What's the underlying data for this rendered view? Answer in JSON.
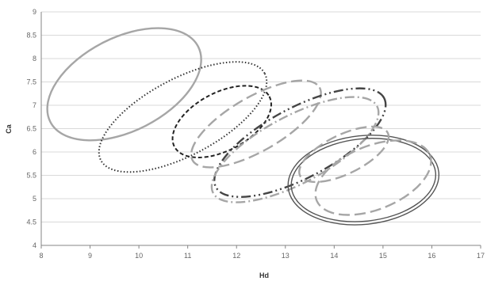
{
  "chart_data": {
    "type": "scatter",
    "title": "",
    "xlabel": "Hd",
    "ylabel": "Ca",
    "xlim": [
      8,
      17
    ],
    "ylim": [
      4,
      9
    ],
    "x_ticks": [
      "8",
      "9",
      "10",
      "11",
      "12",
      "13",
      "14",
      "15",
      "16",
      "17"
    ],
    "y_ticks": [
      "4",
      "4.5",
      "5",
      "5.5",
      "6",
      "6.5",
      "7",
      "7.5",
      "8",
      "8.5",
      "9"
    ],
    "grid": "horizontal",
    "legend": "none",
    "series": [
      {
        "shape": "ellipse",
        "center": [
          9.7,
          7.45
        ],
        "radius_x": 1.7,
        "radius_y": 1.0,
        "rotation_deg": 27,
        "style": "solid",
        "color": "#a6a6a6"
      },
      {
        "shape": "ellipse",
        "center": [
          10.9,
          6.75
        ],
        "radius_x": 1.9,
        "radius_y": 0.82,
        "rotation_deg": 28,
        "style": "dotted",
        "color": "#333333"
      },
      {
        "shape": "ellipse",
        "center": [
          11.7,
          6.65
        ],
        "radius_x": 1.1,
        "radius_y": 0.62,
        "rotation_deg": 28,
        "style": "dashed",
        "color": "#222222"
      },
      {
        "shape": "ellipse",
        "center": [
          12.4,
          6.6
        ],
        "radius_x": 1.5,
        "radius_y": 0.58,
        "rotation_deg": 30,
        "style": "long-dash",
        "color": "#a6a6a6"
      },
      {
        "shape": "ellipse",
        "center": [
          13.3,
          6.2
        ],
        "radius_x": 1.95,
        "radius_y": 0.75,
        "rotation_deg": 28,
        "style": "dash-dot-dot",
        "color": "#444444"
      },
      {
        "shape": "ellipse",
        "center": [
          13.2,
          6.05
        ],
        "radius_x": 1.9,
        "radius_y": 0.72,
        "rotation_deg": 28,
        "style": "dash-dot",
        "color": "#a6a6a6"
      },
      {
        "shape": "ellipse",
        "center": [
          14.6,
          5.4
        ],
        "radius_x": 1.55,
        "radius_y": 0.95,
        "rotation_deg": 6,
        "style": "double",
        "color": "#555555"
      },
      {
        "shape": "ellipse",
        "center": [
          14.8,
          5.45
        ],
        "radius_x": 1.25,
        "radius_y": 0.68,
        "rotation_deg": 22,
        "style": "long-dash",
        "color": "#a6a6a6"
      },
      {
        "shape": "ellipse",
        "center": [
          14.2,
          5.95
        ],
        "radius_x": 1.0,
        "radius_y": 0.42,
        "rotation_deg": 26,
        "style": "long-dash",
        "color": "#a6a6a6"
      }
    ]
  }
}
